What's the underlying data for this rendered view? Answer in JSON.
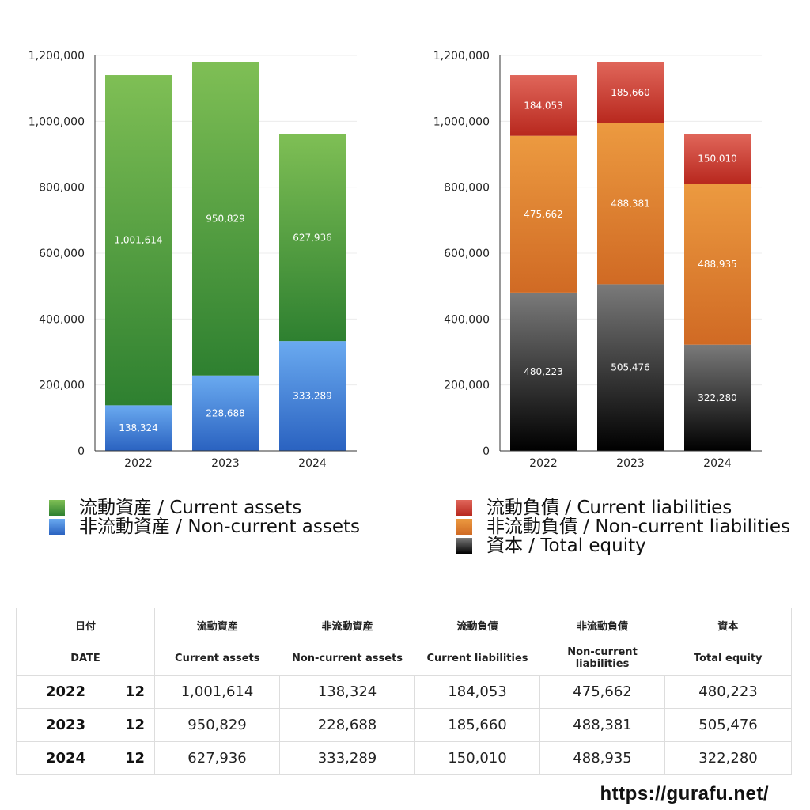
{
  "chart_data": [
    {
      "type": "bar",
      "stacked": true,
      "categories": [
        "2022",
        "2023",
        "2024"
      ],
      "ylim": [
        0,
        1200000
      ],
      "yticks": [
        "0",
        "200,000",
        "400,000",
        "600,000",
        "800,000",
        "1,000,000",
        "1,200,000"
      ],
      "grid": true,
      "series": [
        {
          "name": "非流動資産 / Non-current assets",
          "values": [
            138324,
            228688,
            333289
          ],
          "labels": [
            "138,324",
            "228,688",
            "333,289"
          ],
          "color": "#4a8ee6"
        },
        {
          "name": "流動資産 / Current assets",
          "values": [
            1001614,
            950829,
            627936
          ],
          "labels": [
            "1,001,614",
            "950,829",
            "627,936"
          ],
          "color": "#5ea544"
        }
      ],
      "legend": "bottom",
      "legend_order": [
        "流動資産 / Current assets",
        "非流動資産 / Non-current assets"
      ]
    },
    {
      "type": "bar",
      "stacked": true,
      "categories": [
        "2022",
        "2023",
        "2024"
      ],
      "ylim": [
        0,
        1200000
      ],
      "yticks": [
        "0",
        "200,000",
        "400,000",
        "600,000",
        "800,000",
        "1,000,000",
        "1,200,000"
      ],
      "grid": true,
      "series": [
        {
          "name": "資本 / Total equity",
          "values": [
            480223,
            505476,
            322280
          ],
          "labels": [
            "480,223",
            "505,476",
            "322,280"
          ],
          "color": "#333333"
        },
        {
          "name": "非流動負債 / Non-current liabilities",
          "values": [
            475662,
            488381,
            488935
          ],
          "labels": [
            "475,662",
            "488,381",
            "488,935"
          ],
          "color": "#e0802e"
        },
        {
          "name": "流動負債 / Current liabilities",
          "values": [
            184053,
            185660,
            150010
          ],
          "labels": [
            "184,053",
            "185,660",
            "150,010"
          ],
          "color": "#d04032"
        }
      ],
      "legend": "bottom",
      "legend_order": [
        "流動負債 / Current liabilities",
        "非流動負債 / Non-current liabilities",
        "資本 / Total equity"
      ]
    }
  ],
  "legend_left": [
    {
      "label": "流動資産 / Current assets",
      "color": "#5ea544"
    },
    {
      "label": "非流動資産 / Non-current assets",
      "color": "#4a8ee6"
    }
  ],
  "legend_right": [
    {
      "label": "流動負債 / Current liabilities",
      "color": "#d04032"
    },
    {
      "label": "非流動負債 / Non-current liabilities",
      "color": "#e0802e"
    },
    {
      "label": "資本 / Total equity",
      "color": "#222222"
    }
  ],
  "table": {
    "header_jp": [
      "日付",
      "流動資産",
      "非流動資産",
      "流動負債",
      "非流動負債",
      "資本"
    ],
    "header_en": [
      "DATE",
      "Current assets",
      "Non-current assets",
      "Current liabilities",
      "Non-current liabilities",
      "Total equity"
    ],
    "rows": [
      {
        "year": "2022",
        "month": "12",
        "cells": [
          "1,001,614",
          "138,324",
          "184,053",
          "475,662",
          "480,223"
        ]
      },
      {
        "year": "2023",
        "month": "12",
        "cells": [
          "950,829",
          "228,688",
          "185,660",
          "488,381",
          "505,476"
        ]
      },
      {
        "year": "2024",
        "month": "12",
        "cells": [
          "627,936",
          "333,289",
          "150,010",
          "488,935",
          "322,280"
        ]
      }
    ]
  },
  "site_url": "https://gurafu.net/"
}
